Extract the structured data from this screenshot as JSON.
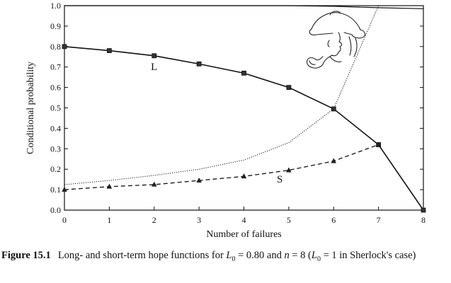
{
  "chart_data": {
    "type": "line",
    "xlabel": "Number of failures",
    "ylabel": "Conditional probability",
    "xlim": [
      0,
      8
    ],
    "ylim": [
      0,
      1.0
    ],
    "x_ticks": [
      "0",
      "1",
      "2",
      "3",
      "4",
      "5",
      "6",
      "7",
      "8"
    ],
    "y_ticks": [
      "0.0",
      "0.1",
      "0.2",
      "0.3",
      "0.4",
      "0.5",
      "0.6",
      "0.7",
      "0.8",
      "0.9",
      "1.0"
    ],
    "series": [
      {
        "name": "L",
        "style": "solid",
        "marker": "square",
        "x": [
          0,
          1,
          2,
          3,
          4,
          5,
          6,
          7,
          8
        ],
        "y": [
          0.8,
          0.78,
          0.755,
          0.715,
          0.67,
          0.6,
          0.495,
          0.32,
          0.0
        ]
      },
      {
        "name": "S",
        "style": "dashed",
        "marker": "triangle",
        "x": [
          0,
          1,
          2,
          3,
          4,
          5,
          6,
          7
        ],
        "y": [
          0.1,
          0.115,
          0.125,
          0.145,
          0.165,
          0.195,
          0.24,
          0.32
        ]
      },
      {
        "style": "dotted",
        "marker": "none",
        "x": [
          0,
          1,
          2,
          3,
          4,
          5,
          6,
          7
        ],
        "y": [
          0.125,
          0.145,
          0.17,
          0.2,
          0.245,
          0.33,
          0.495,
          1.0
        ]
      },
      {
        "style": "solid",
        "marker": "none",
        "x": [
          0,
          1,
          2,
          3,
          4,
          5,
          6,
          7,
          8
        ],
        "y": [
          1.0,
          1.0,
          1.0,
          1.0,
          1.0,
          1.0,
          0.997,
          0.99,
          0.985
        ]
      }
    ],
    "grid": false,
    "legend": "none",
    "series_label_positions": [
      {
        "text": "L",
        "x": 2.0,
        "y": 0.685
      },
      {
        "text": "S",
        "x": 4.8,
        "y": 0.135
      }
    ],
    "illustration": "sherlock-holmes-sketch"
  },
  "caption": {
    "figure_label": "Figure 15.1",
    "text_1": "Long- and short-term hope functions for ",
    "L_symbol": "L",
    "L_subscript": "0",
    "text_2": " = 0.80 and ",
    "n_symbol": "n",
    "text_3": " = 8 (",
    "L2_symbol": "L",
    "L2_subscript": "0",
    "text_4": " = 1 in Sherlock's case)"
  }
}
